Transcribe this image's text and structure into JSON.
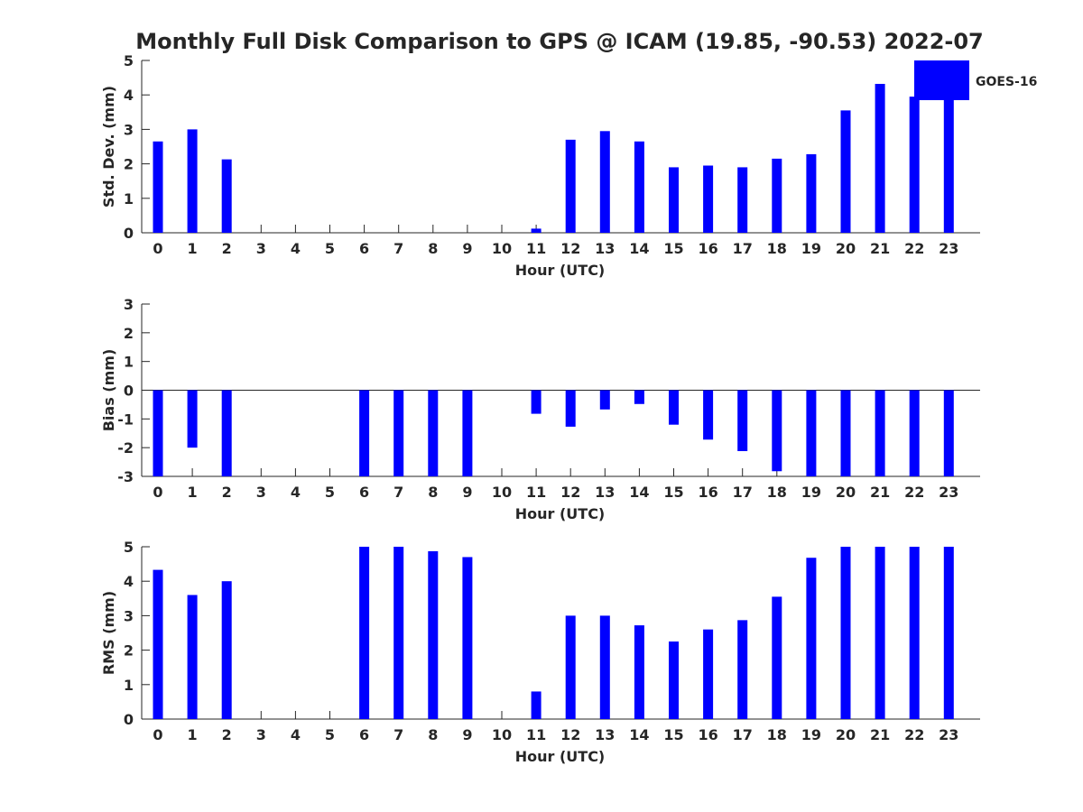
{
  "chart_data": {
    "title": "Monthly Full Disk Comparison to GPS @ ICAM (19.85, -90.53) 2022-07",
    "legend": {
      "label": "GOES-16",
      "color": "#0000ff",
      "position": "top-right"
    },
    "panels": [
      {
        "type": "bar",
        "ylabel": "Std. Dev. (mm)",
        "xlabel": "Hour (UTC)",
        "ylim": [
          0,
          5
        ],
        "yticks": [
          0,
          1,
          2,
          3,
          4,
          5
        ],
        "categories": [
          "0",
          "1",
          "2",
          "3",
          "4",
          "5",
          "6",
          "7",
          "8",
          "9",
          "10",
          "11",
          "12",
          "13",
          "14",
          "15",
          "16",
          "17",
          "18",
          "19",
          "20",
          "21",
          "22",
          "23"
        ],
        "values": [
          2.65,
          3.0,
          2.13,
          null,
          null,
          null,
          null,
          null,
          null,
          null,
          null,
          0.12,
          2.7,
          2.95,
          2.65,
          1.9,
          1.95,
          1.9,
          2.15,
          2.28,
          3.55,
          4.32,
          3.95,
          4.05
        ],
        "zero_line": false
      },
      {
        "type": "bar",
        "ylabel": "Bias (mm)",
        "xlabel": "Hour (UTC)",
        "ylim": [
          -3,
          3
        ],
        "yticks": [
          -3,
          -2,
          -1,
          0,
          1,
          2,
          3
        ],
        "categories": [
          "0",
          "1",
          "2",
          "3",
          "4",
          "5",
          "6",
          "7",
          "8",
          "9",
          "10",
          "11",
          "12",
          "13",
          "14",
          "15",
          "16",
          "17",
          "18",
          "19",
          "20",
          "21",
          "22",
          "23"
        ],
        "values": [
          -3.0,
          -2.0,
          -3.0,
          null,
          null,
          null,
          -3.0,
          -3.0,
          -3.0,
          -3.0,
          null,
          -0.82,
          -1.27,
          -0.67,
          -0.48,
          -1.2,
          -1.72,
          -2.12,
          -2.82,
          -3.0,
          -3.0,
          -3.0,
          -3.0,
          -3.0
        ],
        "zero_line": true
      },
      {
        "type": "bar",
        "ylabel": "RMS (mm)",
        "xlabel": "Hour (UTC)",
        "ylim": [
          0,
          5
        ],
        "yticks": [
          0,
          1,
          2,
          3,
          4,
          5
        ],
        "categories": [
          "0",
          "1",
          "2",
          "3",
          "4",
          "5",
          "6",
          "7",
          "8",
          "9",
          "10",
          "11",
          "12",
          "13",
          "14",
          "15",
          "16",
          "17",
          "18",
          "19",
          "20",
          "21",
          "22",
          "23"
        ],
        "values": [
          4.33,
          3.6,
          4.0,
          null,
          null,
          null,
          5.0,
          5.0,
          4.87,
          4.7,
          null,
          0.8,
          3.0,
          3.0,
          2.72,
          2.25,
          2.6,
          2.87,
          3.55,
          4.68,
          5.0,
          5.0,
          5.0,
          5.0
        ],
        "zero_line": false
      }
    ]
  }
}
